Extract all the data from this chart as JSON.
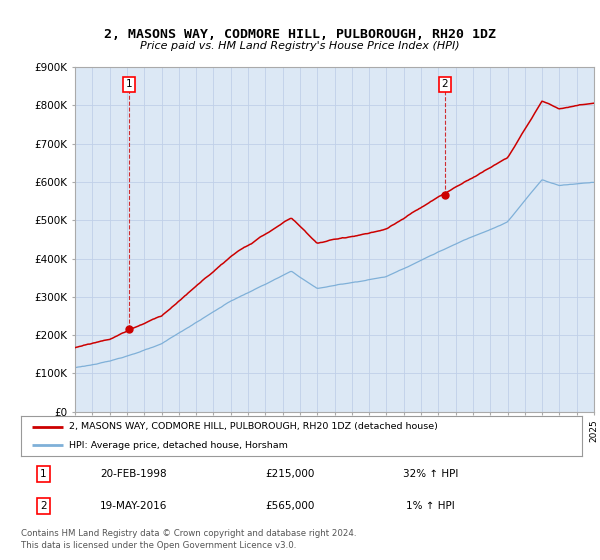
{
  "title": "2, MASONS WAY, CODMORE HILL, PULBOROUGH, RH20 1DZ",
  "subtitle": "Price paid vs. HM Land Registry's House Price Index (HPI)",
  "x_start_year": 1995,
  "x_end_year": 2025,
  "y_min": 0,
  "y_max": 900000,
  "y_ticks": [
    0,
    100000,
    200000,
    300000,
    400000,
    500000,
    600000,
    700000,
    800000,
    900000
  ],
  "y_tick_labels": [
    "£0",
    "£100K",
    "£200K",
    "£300K",
    "£400K",
    "£500K",
    "£600K",
    "£700K",
    "£800K",
    "£900K"
  ],
  "hpi_color": "#7fb0d8",
  "price_color": "#cc0000",
  "chart_bg": "#dce8f5",
  "sale1_year": 1998.13,
  "sale1_price": 215000,
  "sale1_label": "1",
  "sale1_date": "20-FEB-1998",
  "sale1_pct": "32%",
  "sale2_year": 2016.38,
  "sale2_price": 565000,
  "sale2_label": "2",
  "sale2_date": "19-MAY-2016",
  "sale2_pct": "1%",
  "legend_label1": "2, MASONS WAY, CODMORE HILL, PULBOROUGH, RH20 1DZ (detached house)",
  "legend_label2": "HPI: Average price, detached house, Horsham",
  "footer1": "Contains HM Land Registry data © Crown copyright and database right 2024.",
  "footer2": "This data is licensed under the Open Government Licence v3.0.",
  "background_color": "#ffffff",
  "grid_color": "#c0d0e8"
}
